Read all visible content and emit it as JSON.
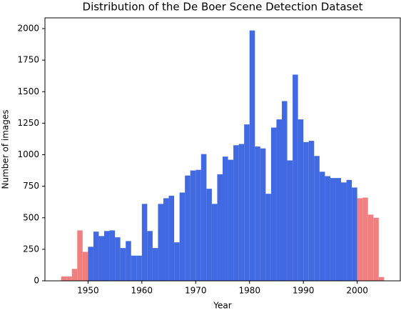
{
  "chart_data": {
    "type": "histogram",
    "title": "Distribution of the De Boer Scene Detection Dataset",
    "x_label": "Year",
    "y_label": "Number of images",
    "bins": [
      1945,
      1946,
      1947,
      1948,
      1949,
      1950,
      1951,
      1952,
      1953,
      1954,
      1955,
      1956,
      1957,
      1958,
      1959,
      1960,
      1961,
      1962,
      1963,
      1964,
      1965,
      1966,
      1967,
      1968,
      1969,
      1970,
      1971,
      1972,
      1973,
      1974,
      1975,
      1976,
      1977,
      1978,
      1979,
      1980,
      1981,
      1982,
      1983,
      1984,
      1985,
      1986,
      1987,
      1988,
      1989,
      1990,
      1991,
      1992,
      1993,
      1994,
      1995,
      1996,
      1997,
      1998,
      1999,
      2000,
      2001,
      2002,
      2003,
      2004,
      2005
    ],
    "values": [
      35,
      35,
      95,
      400,
      230,
      270,
      390,
      355,
      395,
      400,
      345,
      260,
      315,
      200,
      200,
      610,
      395,
      260,
      610,
      655,
      675,
      305,
      700,
      835,
      875,
      880,
      1005,
      730,
      610,
      845,
      985,
      960,
      1075,
      1085,
      1240,
      1985,
      1065,
      1050,
      690,
      1215,
      1280,
      1425,
      955,
      1635,
      1280,
      1100,
      1110,
      990,
      865,
      830,
      815,
      815,
      780,
      800,
      740,
      655,
      660,
      525,
      500,
      30
    ],
    "colors": [
      "#f08080",
      "#f08080",
      "#f08080",
      "#f08080",
      "#f08080",
      "#4169e1",
      "#4169e1",
      "#4169e1",
      "#4169e1",
      "#4169e1",
      "#4169e1",
      "#4169e1",
      "#4169e1",
      "#4169e1",
      "#4169e1",
      "#4169e1",
      "#4169e1",
      "#4169e1",
      "#4169e1",
      "#4169e1",
      "#4169e1",
      "#4169e1",
      "#4169e1",
      "#4169e1",
      "#4169e1",
      "#4169e1",
      "#4169e1",
      "#4169e1",
      "#4169e1",
      "#4169e1",
      "#4169e1",
      "#4169e1",
      "#4169e1",
      "#4169e1",
      "#4169e1",
      "#4169e1",
      "#4169e1",
      "#4169e1",
      "#4169e1",
      "#4169e1",
      "#4169e1",
      "#4169e1",
      "#4169e1",
      "#4169e1",
      "#4169e1",
      "#4169e1",
      "#4169e1",
      "#4169e1",
      "#4169e1",
      "#4169e1",
      "#4169e1",
      "#4169e1",
      "#4169e1",
      "#4169e1",
      "#4169e1",
      "#f08080",
      "#f08080",
      "#f08080",
      "#f08080",
      "#f08080"
    ],
    "xlim": [
      1942,
      2008
    ],
    "xticks": [
      1950,
      1960,
      1970,
      1980,
      1990,
      2000
    ],
    "ylim": [
      0,
      2085
    ],
    "yticks": [
      0,
      250,
      500,
      750,
      1000,
      1250,
      1500,
      1750,
      2000
    ],
    "grid": false
  }
}
